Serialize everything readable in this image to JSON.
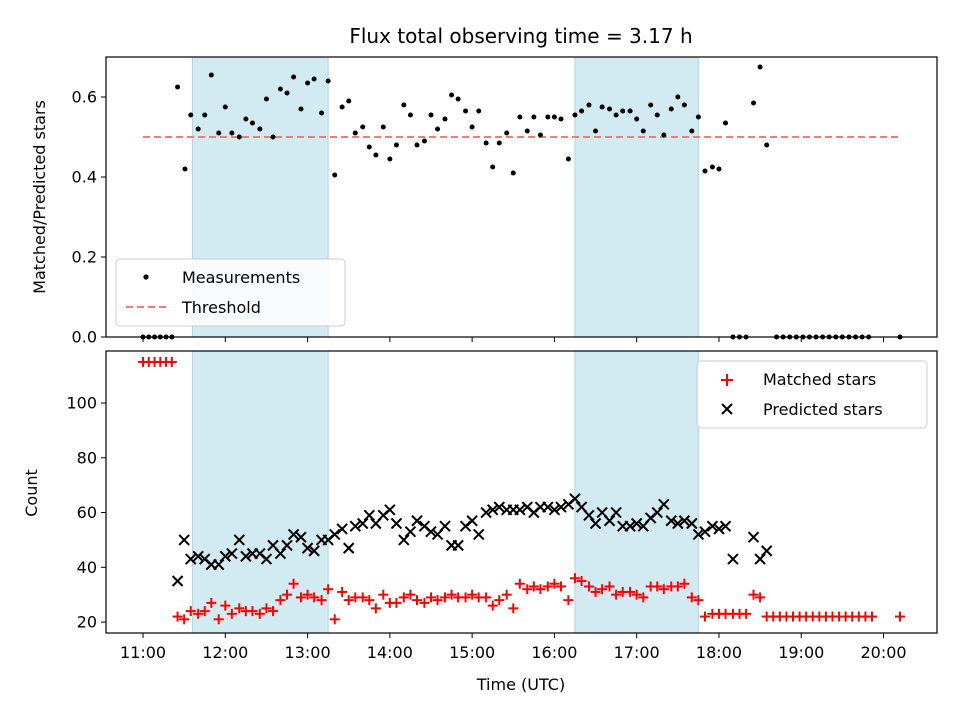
{
  "chart_data": {
    "title": "Flux total observing time = 3.17 h",
    "xlabel": "Time (UTC)",
    "x_ticks": [
      11,
      12,
      13,
      14,
      15,
      16,
      17,
      18,
      19,
      20
    ],
    "x_tick_labels": [
      "11:00",
      "12:00",
      "13:00",
      "14:00",
      "15:00",
      "16:00",
      "17:00",
      "18:00",
      "19:00",
      "20:00"
    ],
    "xlim": [
      10.55,
      20.65
    ],
    "colors": {
      "measurement": "#000000",
      "threshold": "#ff7777",
      "matched": "#ff0000",
      "predicted": "#000000",
      "span_fill": "#add8e6"
    },
    "highlight_spans": [
      [
        11.6,
        13.25
      ],
      [
        16.25,
        17.75
      ]
    ],
    "top": {
      "type": "scatter",
      "ylabel": "Matched/Predicted stars",
      "ylim": [
        0,
        0.7
      ],
      "y_ticks": [
        0,
        0.2,
        0.4,
        0.6
      ],
      "y_tick_labels": [
        "0.0",
        "0.2",
        "0.4",
        "0.6"
      ],
      "legend": {
        "position": "lower-left",
        "measurements_label": "Measurements",
        "threshold_label": "Threshold"
      },
      "threshold": {
        "value": 0.5,
        "x_range": [
          11,
          20.2
        ]
      },
      "measurements": [
        [
          11.0,
          0.0
        ],
        [
          11.07,
          0.0
        ],
        [
          11.14,
          0.0
        ],
        [
          11.21,
          0.0
        ],
        [
          11.28,
          0.0
        ],
        [
          11.35,
          0.0
        ],
        [
          11.42,
          0.625
        ],
        [
          11.51,
          0.42
        ],
        [
          11.58,
          0.555
        ],
        [
          11.67,
          0.52
        ],
        [
          11.75,
          0.555
        ],
        [
          11.83,
          0.655
        ],
        [
          11.92,
          0.51
        ],
        [
          12.0,
          0.575
        ],
        [
          12.08,
          0.51
        ],
        [
          12.17,
          0.5
        ],
        [
          12.25,
          0.545
        ],
        [
          12.33,
          0.535
        ],
        [
          12.42,
          0.52
        ],
        [
          12.5,
          0.595
        ],
        [
          12.58,
          0.5
        ],
        [
          12.67,
          0.62
        ],
        [
          12.75,
          0.61
        ],
        [
          12.83,
          0.65
        ],
        [
          12.92,
          0.57
        ],
        [
          13.0,
          0.635
        ],
        [
          13.08,
          0.645
        ],
        [
          13.17,
          0.56
        ],
        [
          13.25,
          0.64
        ],
        [
          13.33,
          0.405
        ],
        [
          13.42,
          0.575
        ],
        [
          13.5,
          0.59
        ],
        [
          13.58,
          0.51
        ],
        [
          13.67,
          0.525
        ],
        [
          13.75,
          0.475
        ],
        [
          13.83,
          0.455
        ],
        [
          13.92,
          0.525
        ],
        [
          14.0,
          0.445
        ],
        [
          14.08,
          0.48
        ],
        [
          14.17,
          0.58
        ],
        [
          14.25,
          0.555
        ],
        [
          14.33,
          0.48
        ],
        [
          14.42,
          0.49
        ],
        [
          14.5,
          0.555
        ],
        [
          14.58,
          0.52
        ],
        [
          14.67,
          0.545
        ],
        [
          14.75,
          0.605
        ],
        [
          14.83,
          0.595
        ],
        [
          14.92,
          0.565
        ],
        [
          15.0,
          0.525
        ],
        [
          15.08,
          0.565
        ],
        [
          15.17,
          0.485
        ],
        [
          15.25,
          0.425
        ],
        [
          15.33,
          0.485
        ],
        [
          15.42,
          0.51
        ],
        [
          15.5,
          0.41
        ],
        [
          15.58,
          0.55
        ],
        [
          15.67,
          0.515
        ],
        [
          15.75,
          0.55
        ],
        [
          15.83,
          0.505
        ],
        [
          15.92,
          0.55
        ],
        [
          16.0,
          0.55
        ],
        [
          16.08,
          0.545
        ],
        [
          16.17,
          0.445
        ],
        [
          16.25,
          0.555
        ],
        [
          16.33,
          0.565
        ],
        [
          16.42,
          0.58
        ],
        [
          16.5,
          0.515
        ],
        [
          16.58,
          0.575
        ],
        [
          16.67,
          0.57
        ],
        [
          16.75,
          0.555
        ],
        [
          16.83,
          0.565
        ],
        [
          16.92,
          0.565
        ],
        [
          17.0,
          0.545
        ],
        [
          17.08,
          0.515
        ],
        [
          17.17,
          0.58
        ],
        [
          17.25,
          0.555
        ],
        [
          17.33,
          0.505
        ],
        [
          17.42,
          0.57
        ],
        [
          17.5,
          0.6
        ],
        [
          17.58,
          0.58
        ],
        [
          17.67,
          0.515
        ],
        [
          17.75,
          0.55
        ],
        [
          17.83,
          0.415
        ],
        [
          17.92,
          0.425
        ],
        [
          18.0,
          0.42
        ],
        [
          18.08,
          0.535
        ],
        [
          18.17,
          0.0
        ],
        [
          18.25,
          0.0
        ],
        [
          18.33,
          0.0
        ],
        [
          18.42,
          0.585
        ],
        [
          18.5,
          0.675
        ],
        [
          18.58,
          0.48
        ],
        [
          18.7,
          0.0
        ],
        [
          18.78,
          0.0
        ],
        [
          18.86,
          0.0
        ],
        [
          18.94,
          0.0
        ],
        [
          19.02,
          0.0
        ],
        [
          19.1,
          0.0
        ],
        [
          19.18,
          0.0
        ],
        [
          19.26,
          0.0
        ],
        [
          19.34,
          0.0
        ],
        [
          19.42,
          0.0
        ],
        [
          19.5,
          0.0
        ],
        [
          19.58,
          0.0
        ],
        [
          19.66,
          0.0
        ],
        [
          19.74,
          0.0
        ],
        [
          19.82,
          0.0
        ],
        [
          20.2,
          0.0
        ]
      ]
    },
    "bottom": {
      "type": "scatter",
      "ylabel": "Count",
      "ylim": [
        16,
        119
      ],
      "y_ticks": [
        20,
        40,
        60,
        80,
        100
      ],
      "y_tick_labels": [
        "20",
        "40",
        "60",
        "80",
        "100"
      ],
      "legend": {
        "position": "upper-right",
        "matched_label": "Matched stars",
        "predicted_label": "Predicted stars"
      },
      "matched_stars": [
        [
          11.0,
          115
        ],
        [
          11.07,
          115
        ],
        [
          11.14,
          115
        ],
        [
          11.21,
          115
        ],
        [
          11.28,
          115
        ],
        [
          11.35,
          115
        ],
        [
          11.42,
          22
        ],
        [
          11.5,
          21
        ],
        [
          11.58,
          24
        ],
        [
          11.67,
          23
        ],
        [
          11.75,
          24
        ],
        [
          11.83,
          27
        ],
        [
          11.92,
          21
        ],
        [
          12.0,
          26
        ],
        [
          12.08,
          23
        ],
        [
          12.17,
          25
        ],
        [
          12.25,
          24
        ],
        [
          12.33,
          24
        ],
        [
          12.42,
          23
        ],
        [
          12.5,
          25
        ],
        [
          12.58,
          24
        ],
        [
          12.67,
          28
        ],
        [
          12.75,
          30
        ],
        [
          12.83,
          34
        ],
        [
          12.92,
          29
        ],
        [
          13.0,
          30
        ],
        [
          13.08,
          29
        ],
        [
          13.17,
          28
        ],
        [
          13.25,
          32
        ],
        [
          13.33,
          21
        ],
        [
          13.42,
          31
        ],
        [
          13.5,
          28
        ],
        [
          13.58,
          29
        ],
        [
          13.67,
          29
        ],
        [
          13.75,
          28
        ],
        [
          13.83,
          25
        ],
        [
          13.92,
          30
        ],
        [
          14.0,
          27
        ],
        [
          14.08,
          27
        ],
        [
          14.17,
          29
        ],
        [
          14.25,
          30
        ],
        [
          14.33,
          28
        ],
        [
          14.42,
          27
        ],
        [
          14.5,
          29
        ],
        [
          14.58,
          28
        ],
        [
          14.67,
          29
        ],
        [
          14.75,
          30
        ],
        [
          14.83,
          29
        ],
        [
          14.92,
          29
        ],
        [
          15.0,
          30
        ],
        [
          15.08,
          29
        ],
        [
          15.17,
          29
        ],
        [
          15.25,
          26
        ],
        [
          15.33,
          28
        ],
        [
          15.42,
          30
        ],
        [
          15.5,
          25
        ],
        [
          15.58,
          34
        ],
        [
          15.67,
          32
        ],
        [
          15.75,
          33
        ],
        [
          15.83,
          32
        ],
        [
          15.92,
          33
        ],
        [
          16.0,
          34
        ],
        [
          16.08,
          33
        ],
        [
          16.17,
          28
        ],
        [
          16.25,
          36
        ],
        [
          16.33,
          35
        ],
        [
          16.42,
          33
        ],
        [
          16.5,
          31
        ],
        [
          16.58,
          32
        ],
        [
          16.67,
          33
        ],
        [
          16.75,
          30
        ],
        [
          16.83,
          31
        ],
        [
          16.92,
          31
        ],
        [
          17.0,
          30
        ],
        [
          17.08,
          29
        ],
        [
          17.17,
          33
        ],
        [
          17.25,
          33
        ],
        [
          17.33,
          32
        ],
        [
          17.42,
          33
        ],
        [
          17.5,
          33
        ],
        [
          17.58,
          34
        ],
        [
          17.67,
          29
        ],
        [
          17.75,
          28
        ],
        [
          17.83,
          22
        ],
        [
          17.92,
          23
        ],
        [
          18.0,
          23
        ],
        [
          18.08,
          23
        ],
        [
          18.17,
          23
        ],
        [
          18.25,
          23
        ],
        [
          18.33,
          23
        ],
        [
          18.42,
          30
        ],
        [
          18.5,
          29
        ],
        [
          18.58,
          22
        ],
        [
          18.66,
          22
        ],
        [
          18.74,
          22
        ],
        [
          18.82,
          22
        ],
        [
          18.9,
          22
        ],
        [
          18.98,
          22
        ],
        [
          19.06,
          22
        ],
        [
          19.14,
          22
        ],
        [
          19.22,
          22
        ],
        [
          19.3,
          22
        ],
        [
          19.38,
          22
        ],
        [
          19.46,
          22
        ],
        [
          19.54,
          22
        ],
        [
          19.62,
          22
        ],
        [
          19.7,
          22
        ],
        [
          19.78,
          22
        ],
        [
          19.86,
          22
        ],
        [
          20.2,
          22
        ]
      ],
      "predicted_stars": [
        [
          11.42,
          35
        ],
        [
          11.5,
          50
        ],
        [
          11.58,
          43
        ],
        [
          11.67,
          44
        ],
        [
          11.75,
          43
        ],
        [
          11.83,
          41
        ],
        [
          11.92,
          41
        ],
        [
          12.0,
          44
        ],
        [
          12.08,
          45
        ],
        [
          12.17,
          50
        ],
        [
          12.25,
          44
        ],
        [
          12.33,
          45
        ],
        [
          12.42,
          45
        ],
        [
          12.5,
          43
        ],
        [
          12.58,
          48
        ],
        [
          12.67,
          45
        ],
        [
          12.75,
          48
        ],
        [
          12.83,
          52
        ],
        [
          12.92,
          51
        ],
        [
          13.0,
          47
        ],
        [
          13.08,
          46
        ],
        [
          13.17,
          50
        ],
        [
          13.25,
          50
        ],
        [
          13.33,
          52
        ],
        [
          13.42,
          54
        ],
        [
          13.5,
          47
        ],
        [
          13.58,
          55
        ],
        [
          13.67,
          56
        ],
        [
          13.75,
          59
        ],
        [
          13.83,
          56
        ],
        [
          13.92,
          59
        ],
        [
          14.0,
          61
        ],
        [
          14.08,
          56
        ],
        [
          14.17,
          50
        ],
        [
          14.25,
          53
        ],
        [
          14.33,
          57
        ],
        [
          14.42,
          55
        ],
        [
          14.5,
          53
        ],
        [
          14.58,
          52
        ],
        [
          14.67,
          55
        ],
        [
          14.75,
          48
        ],
        [
          14.83,
          48
        ],
        [
          14.92,
          55
        ],
        [
          15.0,
          57
        ],
        [
          15.08,
          52
        ],
        [
          15.17,
          60
        ],
        [
          15.25,
          61
        ],
        [
          15.33,
          62
        ],
        [
          15.42,
          61
        ],
        [
          15.5,
          61
        ],
        [
          15.58,
          61
        ],
        [
          15.67,
          62
        ],
        [
          15.75,
          60
        ],
        [
          15.83,
          62
        ],
        [
          15.92,
          62
        ],
        [
          16.0,
          61
        ],
        [
          16.08,
          62
        ],
        [
          16.17,
          63
        ],
        [
          16.25,
          65
        ],
        [
          16.33,
          62
        ],
        [
          16.42,
          59
        ],
        [
          16.5,
          56
        ],
        [
          16.58,
          60
        ],
        [
          16.67,
          57
        ],
        [
          16.75,
          60
        ],
        [
          16.83,
          55
        ],
        [
          16.92,
          55
        ],
        [
          17.0,
          56
        ],
        [
          17.08,
          55
        ],
        [
          17.17,
          58
        ],
        [
          17.25,
          60
        ],
        [
          17.33,
          63
        ],
        [
          17.42,
          57
        ],
        [
          17.5,
          56
        ],
        [
          17.58,
          57
        ],
        [
          17.67,
          56
        ],
        [
          17.75,
          52
        ],
        [
          17.83,
          53
        ],
        [
          17.92,
          55
        ],
        [
          18.0,
          54
        ],
        [
          18.08,
          55
        ],
        [
          18.17,
          43
        ],
        [
          18.42,
          51
        ],
        [
          18.5,
          43
        ],
        [
          18.58,
          46
        ]
      ]
    }
  }
}
